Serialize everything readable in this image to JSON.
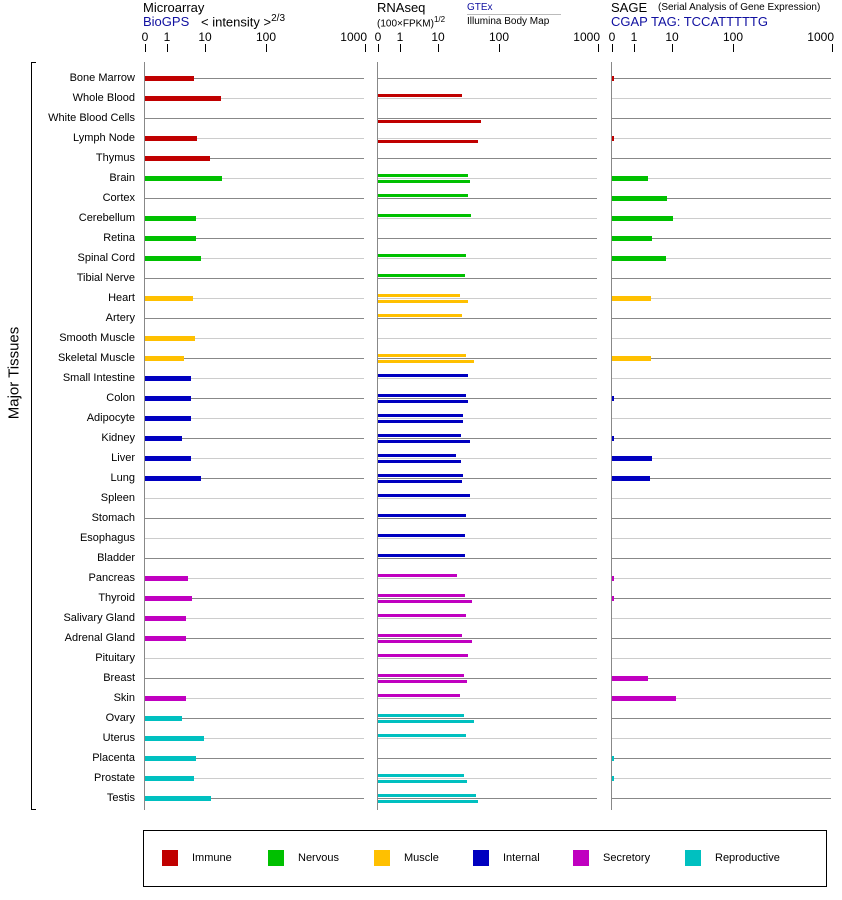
{
  "panels": [
    {
      "title": "Microarray",
      "source": "BioGPS",
      "scale_label": "< intensity >",
      "scale_exp": "2/3"
    },
    {
      "title": "RNAseq",
      "scale_label": "(100×FPKM)",
      "scale_exp": "1/2",
      "source_top": "GTEx",
      "source_bottom": "Illumina Body Map"
    },
    {
      "title": "SAGE",
      "subtitle": "(Serial Analysis of Gene Expression)",
      "source": "CGAP TAG: TCCATTTTTG"
    }
  ],
  "y_axis_label": "Major Tissues",
  "legend": [
    {
      "label": "Immune",
      "color": "#c00000"
    },
    {
      "label": "Nervous",
      "color": "#00c000"
    },
    {
      "label": "Muscle",
      "color": "#ffc000"
    },
    {
      "label": "Internal",
      "color": "#0000c0"
    },
    {
      "label": "Secretory",
      "color": "#c000c0"
    },
    {
      "label": "Reproductive",
      "color": "#00c0c0"
    }
  ],
  "chart_data": {
    "type": "bar",
    "orientation": "horizontal",
    "x_ticks": [
      "0",
      "1",
      "10",
      "100",
      "1000"
    ],
    "xlim": [
      0,
      1000
    ],
    "categories": [
      "Bone Marrow",
      "Whole Blood",
      "White Blood Cells",
      "Lymph Node",
      "Thymus",
      "Brain",
      "Cortex",
      "Cerebellum",
      "Retina",
      "Spinal Cord",
      "Tibial Nerve",
      "Heart",
      "Artery",
      "Smooth Muscle",
      "Skeletal Muscle",
      "Small Intestine",
      "Colon",
      "Adipocyte",
      "Kidney",
      "Liver",
      "Lung",
      "Spleen",
      "Stomach",
      "Esophagus",
      "Bladder",
      "Pancreas",
      "Thyroid",
      "Salivary Gland",
      "Adrenal Gland",
      "Pituitary",
      "Breast",
      "Skin",
      "Ovary",
      "Uterus",
      "Placenta",
      "Prostate",
      "Testis"
    ],
    "groups": [
      0,
      0,
      0,
      0,
      0,
      1,
      1,
      1,
      1,
      1,
      1,
      2,
      2,
      2,
      2,
      3,
      3,
      3,
      3,
      3,
      3,
      3,
      3,
      3,
      3,
      4,
      4,
      4,
      4,
      4,
      4,
      4,
      5,
      5,
      5,
      5,
      5
    ],
    "series": [
      {
        "name": "BioGPS",
        "values": [
          5.1,
          18,
          null,
          6.2,
          12.1,
          19,
          null,
          5.8,
          5.8,
          7.9,
          null,
          4.8,
          null,
          5.5,
          2.8,
          4.3,
          4.3,
          4.3,
          2.5,
          4.3,
          7.9,
          null,
          null,
          null,
          null,
          3.6,
          4.5,
          3.2,
          3.2,
          null,
          null,
          3.2,
          2.5,
          9.4,
          5.8,
          5.1,
          12.5
        ]
      },
      {
        "name": "GTEx",
        "values": [
          null,
          24.7,
          null,
          null,
          null,
          31,
          31,
          34.7,
          null,
          28.7,
          27.7,
          22.9,
          24.7,
          null,
          28.7,
          31,
          28.7,
          25.7,
          23.8,
          19.8,
          25.7,
          33.5,
          28.7,
          27.7,
          27.7,
          20.5,
          27.7,
          28.7,
          24.7,
          31,
          26.7,
          22.9,
          26.7,
          28.7,
          null,
          26.7,
          41.9
        ]
      },
      {
        "name": "Illumina Body Map",
        "values": [
          null,
          null,
          50.7,
          45.3,
          null,
          33.5,
          null,
          null,
          null,
          null,
          null,
          31,
          null,
          null,
          38.9,
          null,
          31,
          25.7,
          33.5,
          23.8,
          24.7,
          null,
          null,
          null,
          null,
          null,
          36,
          null,
          36,
          null,
          29.8,
          null,
          38.9,
          null,
          null,
          29.8,
          45.3
        ]
      },
      {
        "name": "CGAP TAG: TCCATTTTTG",
        "values": [
          0.05,
          null,
          null,
          0.05,
          null,
          2.3,
          7.4,
          10.4,
          3.0,
          6.9,
          null,
          2.8,
          null,
          null,
          2.8,
          null,
          0.05,
          null,
          0.05,
          3.0,
          2.6,
          null,
          null,
          null,
          null,
          0.05,
          0.05,
          null,
          null,
          null,
          2.3,
          11.6,
          null,
          null,
          0.05,
          0.05,
          null
        ]
      }
    ]
  }
}
